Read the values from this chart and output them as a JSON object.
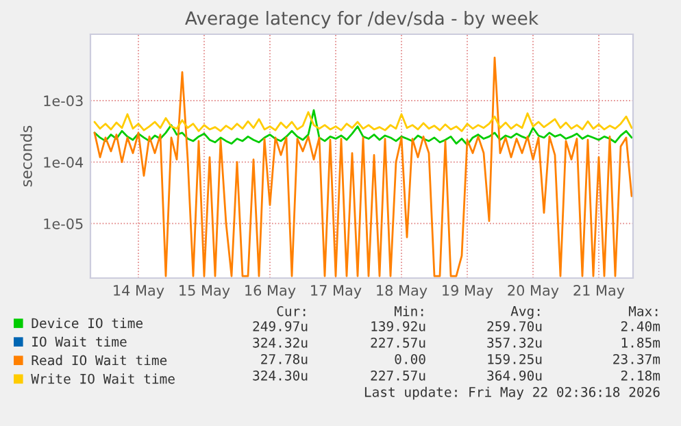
{
  "chart_data": {
    "type": "line",
    "title": "Average latency for /dev/sda - by week",
    "ylabel": "seconds",
    "log": true,
    "grid": true,
    "legend": "bottom",
    "xlim": [
      "2026-05-13T18:30",
      "2026-05-22T00:30"
    ],
    "xticks": [
      {
        "value": "2026-05-14T12:00",
        "label": "14 May"
      },
      {
        "value": "2026-05-15T12:00",
        "label": "15 May"
      },
      {
        "value": "2026-05-16T12:00",
        "label": "16 May"
      },
      {
        "value": "2026-05-17T12:00",
        "label": "17 May"
      },
      {
        "value": "2026-05-18T12:00",
        "label": "18 May"
      },
      {
        "value": "2026-05-19T12:00",
        "label": "19 May"
      },
      {
        "value": "2026-05-20T12:00",
        "label": "20 May"
      },
      {
        "value": "2026-05-21T12:00",
        "label": "21 May"
      }
    ],
    "ylim": [
      1.3e-06,
      0.012
    ],
    "yticks": [
      {
        "value": 1e-05,
        "label": "1e-05"
      },
      {
        "value": 0.0001,
        "label": "1e-04"
      },
      {
        "value": 0.001,
        "label": "1e-03"
      }
    ],
    "x": [
      "2026-05-13T20:00",
      "2026-05-13T22:00",
      "2026-05-14T00:00",
      "2026-05-14T02:00",
      "2026-05-14T04:00",
      "2026-05-14T06:00",
      "2026-05-14T08:00",
      "2026-05-14T10:00",
      "2026-05-14T12:00",
      "2026-05-14T14:00",
      "2026-05-14T16:00",
      "2026-05-14T18:00",
      "2026-05-14T20:00",
      "2026-05-14T22:00",
      "2026-05-15T00:00",
      "2026-05-15T02:00",
      "2026-05-15T04:00",
      "2026-05-15T06:00",
      "2026-05-15T08:00",
      "2026-05-15T10:00",
      "2026-05-15T12:00",
      "2026-05-15T14:00",
      "2026-05-15T16:00",
      "2026-05-15T18:00",
      "2026-05-15T20:00",
      "2026-05-15T22:00",
      "2026-05-16T00:00",
      "2026-05-16T02:00",
      "2026-05-16T04:00",
      "2026-05-16T06:00",
      "2026-05-16T08:00",
      "2026-05-16T10:00",
      "2026-05-16T12:00",
      "2026-05-16T14:00",
      "2026-05-16T16:00",
      "2026-05-16T18:00",
      "2026-05-16T20:00",
      "2026-05-16T22:00",
      "2026-05-17T00:00",
      "2026-05-17T02:00",
      "2026-05-17T04:00",
      "2026-05-17T06:00",
      "2026-05-17T08:00",
      "2026-05-17T10:00",
      "2026-05-17T12:00",
      "2026-05-17T14:00",
      "2026-05-17T16:00",
      "2026-05-17T18:00",
      "2026-05-17T20:00",
      "2026-05-17T22:00",
      "2026-05-18T00:00",
      "2026-05-18T02:00",
      "2026-05-18T04:00",
      "2026-05-18T06:00",
      "2026-05-18T08:00",
      "2026-05-18T10:00",
      "2026-05-18T12:00",
      "2026-05-18T14:00",
      "2026-05-18T16:00",
      "2026-05-18T18:00",
      "2026-05-18T20:00",
      "2026-05-18T22:00",
      "2026-05-19T00:00",
      "2026-05-19T02:00",
      "2026-05-19T04:00",
      "2026-05-19T06:00",
      "2026-05-19T08:00",
      "2026-05-19T10:00",
      "2026-05-19T12:00",
      "2026-05-19T14:00",
      "2026-05-19T16:00",
      "2026-05-19T18:00",
      "2026-05-19T20:00",
      "2026-05-19T22:00",
      "2026-05-20T00:00",
      "2026-05-20T02:00",
      "2026-05-20T04:00",
      "2026-05-20T06:00",
      "2026-05-20T08:00",
      "2026-05-20T10:00",
      "2026-05-20T12:00",
      "2026-05-20T14:00",
      "2026-05-20T16:00",
      "2026-05-20T18:00",
      "2026-05-20T20:00",
      "2026-05-20T22:00",
      "2026-05-21T00:00",
      "2026-05-21T02:00",
      "2026-05-21T04:00",
      "2026-05-21T06:00",
      "2026-05-21T08:00",
      "2026-05-21T10:00",
      "2026-05-21T12:00",
      "2026-05-21T14:00",
      "2026-05-21T16:00",
      "2026-05-21T18:00",
      "2026-05-21T20:00",
      "2026-05-21T22:00",
      "2026-05-22T00:00"
    ],
    "series": [
      {
        "name": "Device IO time",
        "color": "#00cc00",
        "values": [
          0.0003,
          0.00025,
          0.00022,
          0.00028,
          0.00024,
          0.00032,
          0.00026,
          0.00023,
          0.00029,
          0.00025,
          0.00022,
          0.00027,
          0.00024,
          0.0003,
          0.0004,
          0.00028,
          0.0003,
          0.00024,
          0.00022,
          0.00026,
          0.00029,
          0.00023,
          0.00021,
          0.00025,
          0.00022,
          0.0002,
          0.00024,
          0.00022,
          0.00026,
          0.00023,
          0.00021,
          0.00025,
          0.00028,
          0.00024,
          0.00022,
          0.00026,
          0.00032,
          0.00026,
          0.00023,
          0.00028,
          0.0007,
          0.00025,
          0.00022,
          0.00026,
          0.00024,
          0.00027,
          0.00023,
          0.00029,
          0.00038,
          0.00026,
          0.00024,
          0.00028,
          0.00023,
          0.00027,
          0.00025,
          0.00022,
          0.00026,
          0.00024,
          0.00022,
          0.00027,
          0.00024,
          0.00022,
          0.00025,
          0.00021,
          0.00023,
          0.00026,
          0.0002,
          0.00024,
          0.00019,
          0.00025,
          0.00028,
          0.00024,
          0.00026,
          0.0003,
          0.00023,
          0.00027,
          0.00025,
          0.00029,
          0.00026,
          0.00024,
          0.00036,
          0.00027,
          0.00025,
          0.0003,
          0.00026,
          0.00028,
          0.00024,
          0.00026,
          0.00029,
          0.00024,
          0.00027,
          0.00025,
          0.00023,
          0.00026,
          0.00024,
          0.00021,
          0.00027,
          0.00032,
          0.00025
        ]
      },
      {
        "name": "IO Wait time",
        "color": "#0066b3",
        "values": [
          null,
          null,
          null,
          null,
          null,
          null,
          null,
          null,
          null,
          null,
          null,
          null,
          null,
          null,
          null,
          null,
          null,
          null,
          null,
          null,
          null,
          null,
          null,
          null,
          null,
          null,
          null,
          null,
          null,
          null,
          null,
          null,
          null,
          null,
          null,
          null,
          null,
          null,
          null,
          null,
          null,
          null,
          null,
          null,
          null,
          null,
          null,
          null,
          null,
          null,
          null,
          null,
          null,
          null,
          null,
          null,
          null,
          null,
          null,
          null,
          null,
          null,
          null,
          null,
          null,
          null,
          null,
          null,
          null,
          null,
          null,
          null,
          null,
          null,
          null,
          null,
          null,
          null,
          null,
          null,
          null,
          null,
          null,
          null,
          null,
          null,
          null,
          null,
          null,
          null,
          null,
          null,
          null,
          null,
          null,
          null,
          null,
          null,
          null
        ]
      },
      {
        "name": "Read IO Wait time",
        "color": "#ff8000",
        "values": [
          0.0003,
          0.00012,
          0.00025,
          0.00015,
          0.00028,
          0.0001,
          0.00025,
          0.00014,
          0.0003,
          6e-05,
          0.00026,
          0.00014,
          0.00028,
          1.4e-06,
          0.00025,
          0.00011,
          0.0029,
          0.00011,
          1.4e-06,
          0.00022,
          1.4e-06,
          0.00012,
          1.4e-06,
          0.00023,
          1e-05,
          1.4e-06,
          0.0001,
          1.4e-06,
          1.4e-06,
          0.00011,
          1.4e-06,
          0.00024,
          2e-05,
          0.00025,
          0.00013,
          0.00025,
          1.4e-06,
          0.00024,
          0.00015,
          0.00026,
          0.00011,
          0.00025,
          1.4e-06,
          0.00023,
          1.4e-06,
          0.00024,
          1.4e-06,
          0.00014,
          1.4e-06,
          0.00025,
          1.4e-06,
          0.00013,
          1.4e-06,
          0.00024,
          1.4e-06,
          0.0001,
          0.00025,
          6e-06,
          0.00024,
          0.00012,
          0.00026,
          0.00014,
          1.4e-06,
          1.4e-06,
          0.00022,
          1.4e-06,
          1.4e-06,
          3e-06,
          0.00023,
          0.00014,
          0.00026,
          0.00014,
          1.1e-05,
          0.005,
          0.00014,
          0.00025,
          0.00012,
          0.00024,
          0.00014,
          0.00026,
          0.00011,
          0.00025,
          1.5e-05,
          0.00026,
          0.00013,
          1.4e-06,
          0.00022,
          0.00011,
          0.00024,
          1.4e-06,
          0.00023,
          1.4e-06,
          0.00012,
          1.4e-06,
          0.00026,
          1.4e-06,
          0.00018,
          0.00025,
          2.8e-05
        ]
      },
      {
        "name": "Write IO Wait time",
        "color": "#ffcc00",
        "values": [
          0.00045,
          0.00035,
          0.00042,
          0.00034,
          0.00044,
          0.00036,
          0.0006,
          0.00035,
          0.00042,
          0.00033,
          0.00038,
          0.00045,
          0.00036,
          0.00052,
          0.00038,
          0.00035,
          0.00048,
          0.00036,
          0.00042,
          0.00032,
          0.0004,
          0.00034,
          0.00037,
          0.00032,
          0.00039,
          0.00034,
          0.00042,
          0.00035,
          0.00046,
          0.00036,
          0.0005,
          0.00034,
          0.00038,
          0.00033,
          0.00044,
          0.00036,
          0.00045,
          0.00034,
          0.00039,
          0.00065,
          0.0004,
          0.00035,
          0.0004,
          0.00034,
          0.00038,
          0.00033,
          0.00042,
          0.00036,
          0.00045,
          0.00035,
          0.0004,
          0.00034,
          0.00037,
          0.00033,
          0.0004,
          0.00035,
          0.0006,
          0.00036,
          0.0004,
          0.00034,
          0.00043,
          0.00035,
          0.00039,
          0.00033,
          0.00041,
          0.00034,
          0.00038,
          0.00032,
          0.00042,
          0.00035,
          0.0004,
          0.00036,
          0.00042,
          0.00055,
          0.00036,
          0.00044,
          0.00035,
          0.00041,
          0.00036,
          0.00062,
          0.00038,
          0.00045,
          0.00037,
          0.00043,
          0.0005,
          0.00036,
          0.00044,
          0.00035,
          0.0004,
          0.00034,
          0.00046,
          0.00035,
          0.00041,
          0.00034,
          0.00039,
          0.00035,
          0.00042,
          0.00055,
          0.00036
        ]
      }
    ],
    "annotations": [
      "Cur:",
      "Min:",
      "Avg:",
      "Max:",
      "249.97u",
      "139.92u",
      "259.70u",
      "2.40m",
      "324.32u",
      "227.57u",
      "357.32u",
      "1.85m",
      "27.78u",
      "0.00",
      "159.25u",
      "23.37m",
      "324.30u",
      "227.57u",
      "364.90u",
      "2.18m",
      "Last update: Fri May 22 02:36:18 2026"
    ]
  }
}
